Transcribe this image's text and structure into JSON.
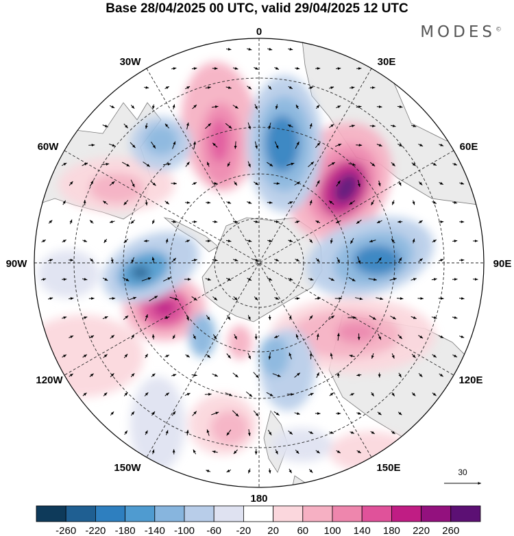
{
  "header": {
    "title": "Base 28/04/2025 00 UTC, valid 29/04/2025 12 UTC",
    "brand": "MODES",
    "brand_mark": "©"
  },
  "map": {
    "projection": "south-polar-stereographic",
    "longitude_labels": [
      "0",
      "30E",
      "60E",
      "90E",
      "120E",
      "150E",
      "180",
      "150W",
      "120W",
      "90W",
      "60W",
      "30W"
    ],
    "reference_vector_label": "30",
    "land_color": "#ebebeb",
    "background_color": "#ffffff"
  },
  "colorbar": {
    "tick_labels": [
      "-260",
      "-220",
      "-180",
      "-140",
      "-100",
      "-60",
      "-20",
      "20",
      "60",
      "100",
      "140",
      "180",
      "220",
      "260"
    ],
    "colors": [
      "#0e3a5a",
      "#1f5f92",
      "#2e7fbf",
      "#4f9bd0",
      "#87b5de",
      "#b8cde9",
      "#dfe2f1",
      "#ffffff",
      "#fbd7dd",
      "#f6b0c3",
      "#ee86ad",
      "#e0529a",
      "#c01d84",
      "#93117e",
      "#5c1074"
    ]
  }
}
